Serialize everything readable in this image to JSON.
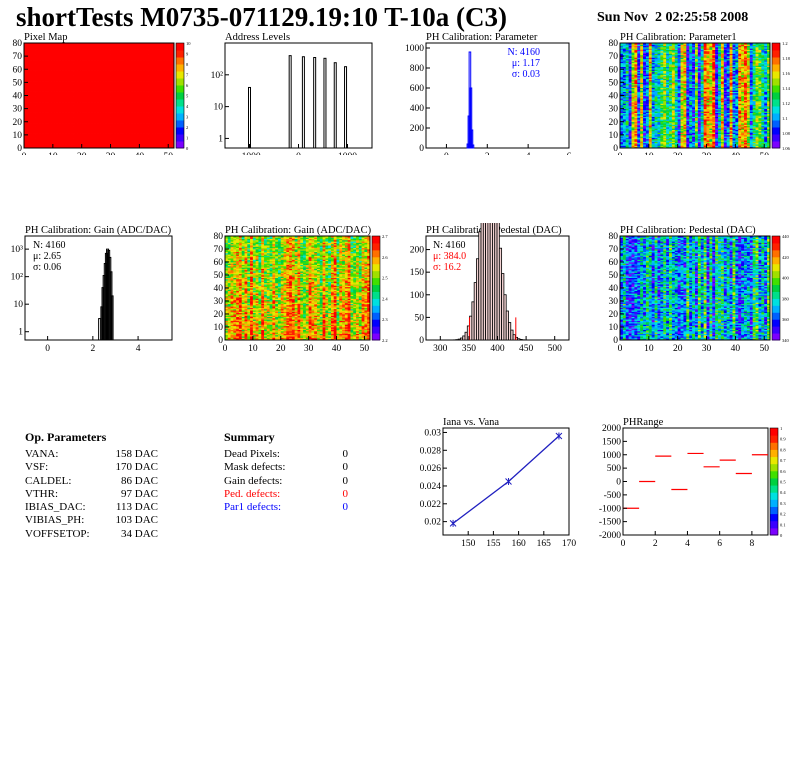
{
  "header": {
    "title": "shortTests M0735-071129.19:10 T-10a (C3)",
    "timestamp": "Sun Nov  2 02:25:58 2008"
  },
  "colors": {
    "red": "#ff0000",
    "blue": "#0000ff",
    "fit_line": "#2020c0",
    "palette": [
      "#7b00ff",
      "#3a00ff",
      "#0000ff",
      "#0060ff",
      "#00b0ff",
      "#00e0e0",
      "#00e08a",
      "#00d040",
      "#40e000",
      "#a0e000",
      "#e8e800",
      "#ffb000",
      "#ff7000",
      "#ff2000",
      "#ff0000"
    ]
  },
  "chart_data": [
    {
      "type": "heatmap",
      "title": "Pixel Map",
      "xlim": [
        0,
        52
      ],
      "ylim": [
        0,
        80
      ],
      "nx": 52,
      "ny": 80,
      "xticks": [
        0,
        10,
        20,
        30,
        40,
        50
      ],
      "yticks": [
        0,
        10,
        20,
        30,
        40,
        50,
        60,
        70,
        80
      ],
      "zlim": [
        0,
        10
      ],
      "zticks": [
        "0",
        "1",
        "2",
        "3",
        "4",
        "5",
        "6",
        "7",
        "8",
        "9",
        "10"
      ],
      "value": 10,
      "pattern": "uniform"
    },
    {
      "type": "bar",
      "title": "Address Levels",
      "yscale": "log",
      "xlim": [
        -1500,
        1500
      ],
      "ylim": [
        0.5,
        1000
      ],
      "xticks": [
        -1000,
        0,
        1000
      ],
      "yticks_log": [
        1,
        10,
        100
      ],
      "yticklabels": [
        "1",
        "10",
        "10²"
      ],
      "peaks": [
        {
          "x": -1000,
          "h": 40
        },
        {
          "x": -170,
          "h": 400
        },
        {
          "x": 100,
          "h": 370
        },
        {
          "x": 330,
          "h": 350
        },
        {
          "x": 540,
          "h": 330
        },
        {
          "x": 750,
          "h": 240
        },
        {
          "x": 960,
          "h": 180
        }
      ]
    },
    {
      "type": "bar",
      "title": "PH Calibration: Parameter",
      "xlim": [
        -1,
        6
      ],
      "ylim": [
        0,
        1050
      ],
      "xticks": [
        0,
        2,
        4,
        6
      ],
      "yticks": [
        0,
        200,
        400,
        600,
        800,
        1000
      ],
      "stats": [
        {
          "text": "N: 4160",
          "color": "blue"
        },
        {
          "text": "μ: 1.17",
          "color": "blue"
        },
        {
          "text": "σ: 0.03",
          "color": "blue"
        }
      ],
      "bins": [
        {
          "x": 1.05,
          "h": 40
        },
        {
          "x": 1.1,
          "h": 320
        },
        {
          "x": 1.15,
          "h": 960
        },
        {
          "x": 1.2,
          "h": 600
        },
        {
          "x": 1.25,
          "h": 180
        },
        {
          "x": 1.3,
          "h": 30
        }
      ]
    },
    {
      "type": "heatmap",
      "title": "PH Calibration: Parameter1",
      "xlim": [
        0,
        52
      ],
      "ylim": [
        0,
        80
      ],
      "nx": 52,
      "ny": 80,
      "xticks": [
        0,
        10,
        20,
        30,
        40,
        50
      ],
      "yticks": [
        0,
        10,
        20,
        30,
        40,
        50,
        60,
        70,
        80
      ],
      "zlim": [
        1.06,
        1.2
      ],
      "zticks": [
        "1.06",
        "1.08",
        "1.1",
        "1.12",
        "1.14",
        "1.16",
        "1.18",
        "1.2"
      ],
      "pattern": "columns",
      "seed": 11
    },
    {
      "type": "bar",
      "title": "PH Calibration: Gain (ADC/DAC)",
      "yscale": "log",
      "xlim": [
        -1,
        5.5
      ],
      "ylim": [
        0.5,
        3000
      ],
      "xticks": [
        0,
        2,
        4
      ],
      "yticks_log": [
        1,
        10,
        100,
        1000
      ],
      "yticklabels": [
        "1",
        "10",
        "10²",
        "10³"
      ],
      "stats": [
        {
          "text": "N: 4160",
          "color": "black"
        },
        {
          "text": "μ: 2.65",
          "color": "black"
        },
        {
          "text": "σ: 0.06",
          "color": "black"
        }
      ],
      "bins": [
        {
          "x": 2.3,
          "h": 3
        },
        {
          "x": 2.4,
          "h": 8
        },
        {
          "x": 2.45,
          "h": 40
        },
        {
          "x": 2.5,
          "h": 110
        },
        {
          "x": 2.55,
          "h": 300
        },
        {
          "x": 2.6,
          "h": 700
        },
        {
          "x": 2.65,
          "h": 1000
        },
        {
          "x": 2.7,
          "h": 900
        },
        {
          "x": 2.75,
          "h": 500
        },
        {
          "x": 2.8,
          "h": 150
        },
        {
          "x": 2.85,
          "h": 20
        }
      ]
    },
    {
      "type": "heatmap",
      "title": "PH Calibration: Gain (ADC/DAC)",
      "xlim": [
        0,
        52
      ],
      "ylim": [
        0,
        80
      ],
      "nx": 52,
      "ny": 80,
      "xticks": [
        0,
        10,
        20,
        30,
        40,
        50
      ],
      "yticks": [
        0,
        10,
        20,
        30,
        40,
        50,
        60,
        70,
        80
      ],
      "zlim": [
        2.2,
        2.7
      ],
      "zticks": [
        "2.2",
        "2.3",
        "2.4",
        "2.5",
        "2.6",
        "2.7"
      ],
      "pattern": "gain",
      "seed": 23
    },
    {
      "type": "bar",
      "title": "PH Calibration: Pedestal (DAC)",
      "xlim": [
        275,
        525
      ],
      "ylim": [
        0,
        230
      ],
      "xticks": [
        300,
        350,
        400,
        450,
        500
      ],
      "yticks": [
        0,
        50,
        100,
        150,
        200
      ],
      "stats": [
        {
          "text": "N: 4160",
          "color": "black"
        },
        {
          "text": "μ: 384.0",
          "color": "red"
        },
        {
          "text": "σ: 16.2",
          "color": "red"
        }
      ],
      "mean": 384.0,
      "sigma": 16.2,
      "n": 4160,
      "binwidth": 4,
      "cut_lines": [
        {
          "x": 351,
          "h": 50
        },
        {
          "x": 432,
          "h": 50
        }
      ]
    },
    {
      "type": "heatmap",
      "title": "PH Calibration: Pedestal (DAC)",
      "xlim": [
        0,
        52
      ],
      "ylim": [
        0,
        80
      ],
      "nx": 52,
      "ny": 80,
      "xticks": [
        0,
        10,
        20,
        30,
        40,
        50
      ],
      "yticks": [
        0,
        10,
        20,
        30,
        40,
        50,
        60,
        70,
        80
      ],
      "zlim": [
        340,
        440
      ],
      "zticks": [
        "340",
        "360",
        "380",
        "400",
        "420",
        "440"
      ],
      "pattern": "pedestal",
      "seed": 37
    },
    {
      "type": "line",
      "title": "Iana vs. Vana",
      "xlim": [
        145,
        170
      ],
      "ylim": [
        0.0185,
        0.0305
      ],
      "xticks": [
        150,
        155,
        160,
        165,
        170
      ],
      "yticks": [
        0.02,
        0.022,
        0.024,
        0.026,
        0.028,
        0.03
      ],
      "x": [
        147,
        158,
        168
      ],
      "y": [
        0.0198,
        0.0245,
        0.0296
      ]
    },
    {
      "type": "scatter",
      "title": "PHRange",
      "xlim": [
        0,
        9
      ],
      "ylim": [
        -2000,
        2000
      ],
      "xticks": [
        0,
        2,
        4,
        6,
        8
      ],
      "yticks": [
        -2000,
        -1500,
        -1000,
        -500,
        0,
        500,
        1000,
        1500,
        2000
      ],
      "zlim": [
        0,
        1
      ],
      "zticks": [
        "0",
        "0.1",
        "0.2",
        "0.3",
        "0.4",
        "0.5",
        "0.6",
        "0.7",
        "0.8",
        "0.9",
        "1"
      ],
      "x": [
        0.5,
        1.5,
        2.5,
        3.5,
        4.5,
        5.5,
        6.5,
        7.5,
        8.5
      ],
      "y": [
        -1000,
        0,
        950,
        -300,
        1050,
        550,
        800,
        300,
        1000
      ]
    }
  ],
  "op_params": {
    "title": "Op. Parameters",
    "rows": [
      {
        "label": "VANA:",
        "value": "158 DAC"
      },
      {
        "label": "VSF:",
        "value": "170 DAC"
      },
      {
        "label": "CALDEL:",
        "value": "86 DAC"
      },
      {
        "label": "VTHR:",
        "value": "97 DAC"
      },
      {
        "label": "IBIAS_DAC:",
        "value": "113 DAC"
      },
      {
        "label": "VIBIAS_PH:",
        "value": "103 DAC"
      },
      {
        "label": "VOFFSETOP:",
        "value": "34 DAC"
      }
    ]
  },
  "summary": {
    "title": "Summary",
    "rows": [
      {
        "label": "Dead Pixels:",
        "value": "0",
        "color": "black"
      },
      {
        "label": "Mask defects:",
        "value": "0",
        "color": "black"
      },
      {
        "label": "Gain defects:",
        "value": "0",
        "color": "black"
      },
      {
        "label": "Ped. defects:",
        "value": "0",
        "color": "red"
      },
      {
        "label": "Par1 defects:",
        "value": "0",
        "color": "blue"
      }
    ]
  }
}
